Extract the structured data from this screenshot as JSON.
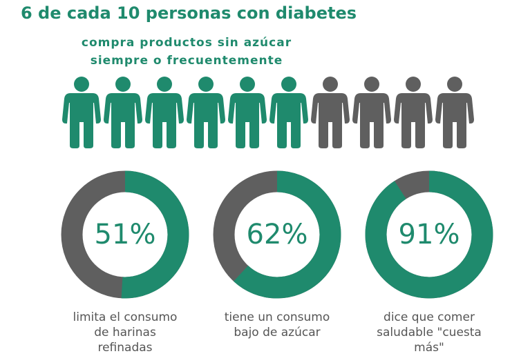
{
  "chart_data": [
    {
      "type": "pictogram",
      "title": "6 de cada 10 personas con diabetes",
      "subtitle": [
        "compra productos sin azúcar",
        "siempre o frecuentemente"
      ],
      "value": 6,
      "total": 10,
      "color": "#1f8a6d",
      "rest_color": "#5f5f5f"
    },
    {
      "type": "donut",
      "value": 51,
      "value_label": "51%",
      "caption": [
        "limita el consumo",
        "de harinas",
        "refinadas"
      ],
      "color": "#1f8a6d",
      "rest_color": "#5f5f5f"
    },
    {
      "type": "donut",
      "value": 62,
      "value_label": "62%",
      "caption": [
        "tiene un consumo",
        "bajo de azúcar"
      ],
      "color": "#1f8a6d",
      "rest_color": "#5f5f5f"
    },
    {
      "type": "donut",
      "value": 91,
      "value_label": "91%",
      "caption": [
        "dice que comer",
        "saludable \"cuesta",
        "más\""
      ],
      "color": "#1f8a6d",
      "rest_color": "#5f5f5f"
    }
  ]
}
